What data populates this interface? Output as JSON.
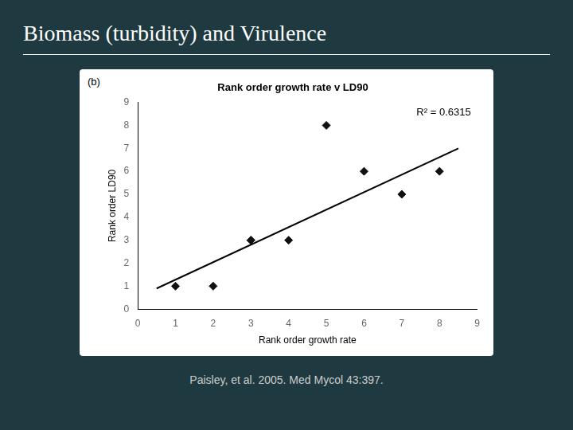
{
  "chart_data": {
    "type": "scatter",
    "title": "Biomass (turbidity) and Virulence",
    "subtitle": "Rank order growth rate v LD90",
    "xlabel": "Rank order growth rate",
    "ylabel": "Rank order LD90",
    "annotations": [
      "R² = 0.6315",
      "(b)",
      "Paisley, et al. 2005. Med Mycol 43:397."
    ],
    "series": [
      {
        "type": "scatter",
        "x": [
          1,
          2,
          3,
          3,
          4,
          5,
          6,
          7,
          8
        ],
        "values": [
          1,
          1,
          3,
          3,
          3,
          8,
          6,
          5,
          6
        ],
        "color": "#111111",
        "marker": "diamond"
      },
      {
        "type": "line",
        "x": [
          0.5,
          8.5
        ],
        "values": [
          0.9,
          7.0
        ],
        "color": "black",
        "line_style": "solid"
      }
    ],
    "xlim": [
      0,
      9
    ],
    "ylim": [
      0,
      9
    ],
    "xticks": [
      0,
      1,
      2,
      3,
      4,
      5,
      6,
      7,
      8,
      9
    ],
    "yticks": [
      0,
      1,
      2,
      3,
      4,
      5,
      6,
      7,
      8,
      9
    ],
    "grid": false
  }
}
